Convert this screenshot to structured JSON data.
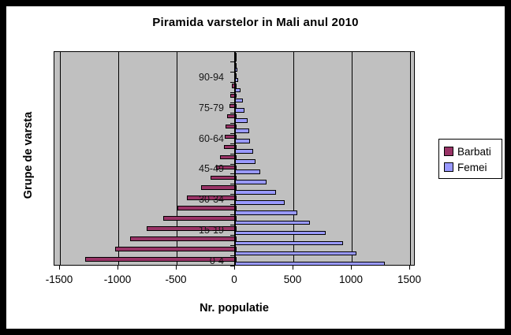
{
  "title": "Piramida varstelor in Mali anul 2010",
  "axes": {
    "x_title": "Nr. populatie",
    "y_title": "Grupe de varsta"
  },
  "legend": {
    "items": [
      {
        "label": "Barbati",
        "color": "#993366"
      },
      {
        "label": "Femei",
        "color": "#9999ff"
      }
    ]
  },
  "chart_data": {
    "type": "bar",
    "orientation": "horizontal",
    "title": "Piramida varstelor in Mali anul 2010",
    "xlabel": "Nr. populatie",
    "ylabel": "Grupe de varsta",
    "xlim": [
      -1500,
      1500
    ],
    "x_ticks": [
      -1500,
      -1000,
      -500,
      0,
      500,
      1000,
      1500
    ],
    "grid": true,
    "plot_bg": "#c0c0c0",
    "legend_position": "right",
    "categories": [
      "0-4",
      "5-9",
      "10-14",
      "15-19",
      "20-24",
      "25-29",
      "30-34",
      "35-39",
      "40-44",
      "45-49",
      "50-54",
      "55-59",
      "60-64",
      "65-69",
      "70-74",
      "75-79",
      "80-84",
      "85-89",
      "90-94",
      "95-99",
      "100+"
    ],
    "visible_category_labels": [
      "0-4",
      "15-19",
      "30-34",
      "45-49",
      "60-64",
      "75-79",
      "90-94"
    ],
    "label_every_nth": 3,
    "series": [
      {
        "name": "Barbati",
        "color": "#993366",
        "side": "left",
        "values": [
          -1285,
          -1030,
          -900,
          -760,
          -615,
          -490,
          -410,
          -290,
          -210,
          -160,
          -130,
          -97,
          -90,
          -80,
          -65,
          -50,
          -38,
          -27,
          -8,
          -3,
          -1
        ]
      },
      {
        "name": "Femei",
        "color": "#9999ff",
        "side": "right",
        "values": [
          1270,
          1030,
          910,
          765,
          630,
          520,
          415,
          335,
          255,
          205,
          165,
          140,
          112,
          105,
          95,
          70,
          52,
          32,
          15,
          5,
          2
        ]
      }
    ]
  }
}
